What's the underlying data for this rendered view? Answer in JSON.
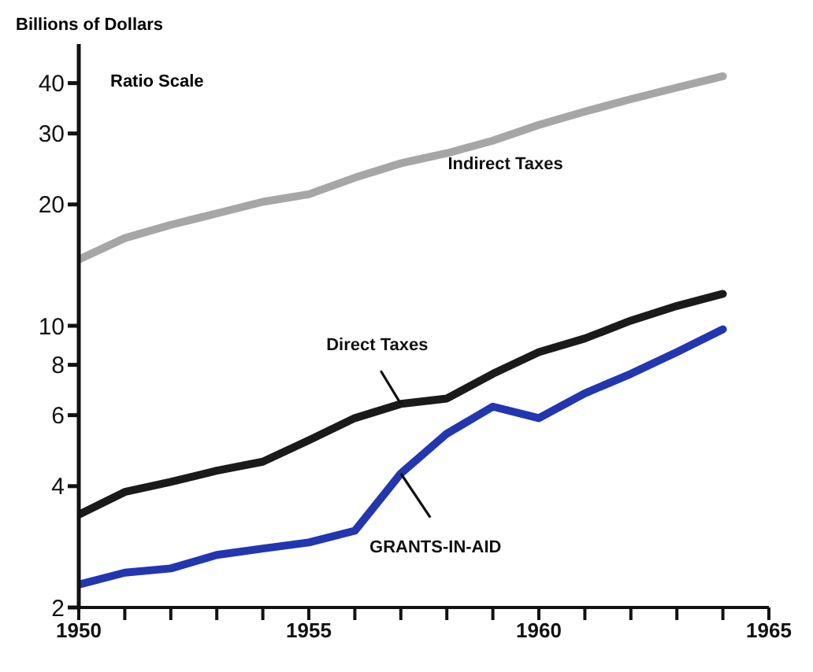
{
  "chart_data": {
    "type": "line",
    "ylabel": "Billions of Dollars",
    "annotations": [
      "Ratio Scale"
    ],
    "x": [
      1950,
      1951,
      1952,
      1953,
      1954,
      1955,
      1956,
      1957,
      1958,
      1959,
      1960,
      1961,
      1962,
      1963,
      1964
    ],
    "series": [
      {
        "name": "Indirect Taxes",
        "color": "#a6a6a6",
        "values": [
          14.6,
          16.5,
          17.8,
          19,
          20.3,
          21.2,
          23.3,
          25.3,
          26.8,
          28.8,
          31.5,
          34,
          36.5,
          39,
          41.6
        ]
      },
      {
        "name": "Direct Taxes",
        "color": "#1a1a1a",
        "values": [
          3.4,
          3.87,
          4.1,
          4.37,
          4.6,
          5.2,
          5.9,
          6.4,
          6.6,
          7.6,
          8.6,
          9.3,
          10.3,
          11.2,
          12
        ]
      },
      {
        "name": "GRANTS-IN-AID",
        "color": "#2236b0",
        "values": [
          2.28,
          2.44,
          2.5,
          2.7,
          2.8,
          2.9,
          3.1,
          4.3,
          5.4,
          6.3,
          5.9,
          6.8,
          7.6,
          8.6,
          9.8
        ]
      }
    ],
    "log": "y",
    "xlim": [
      1950,
      1965
    ],
    "ylim": [
      2,
      50
    ],
    "xticks": [
      1950,
      {
        "value": 1951,
        "label": null
      },
      {
        "value": 1952,
        "label": null
      },
      {
        "value": 1953,
        "label": null
      },
      {
        "value": 1954,
        "label": null
      },
      1955,
      {
        "value": 1956,
        "label": null
      },
      {
        "value": 1957,
        "label": null
      },
      {
        "value": 1958,
        "label": null
      },
      {
        "value": 1959,
        "label": null
      },
      1960,
      {
        "value": 1961,
        "label": null
      },
      {
        "value": 1962,
        "label": null
      },
      {
        "value": 1963,
        "label": null
      },
      {
        "value": 1964,
        "label": null
      },
      1965
    ],
    "yticks": [
      2,
      4,
      6,
      8,
      10,
      20,
      30,
      40
    ],
    "grid": false,
    "legend": false,
    "marker": "none",
    "line_style": "solid"
  }
}
